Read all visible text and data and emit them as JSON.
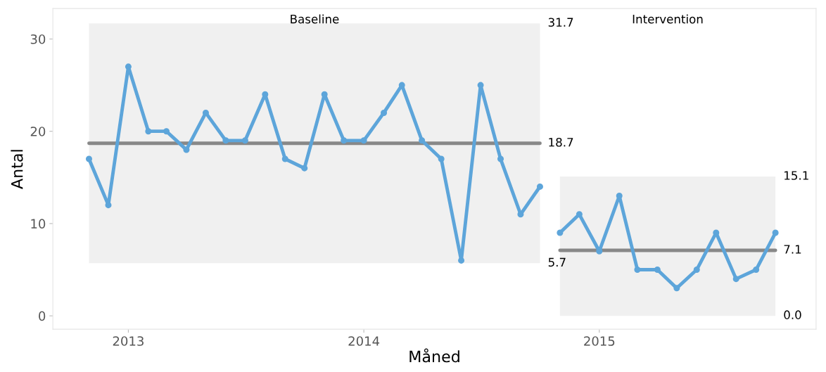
{
  "chart_data": {
    "type": "line",
    "xlabel": "Måned",
    "ylabel": "Antal",
    "marker": "circle",
    "line_style": "solid",
    "grid": false,
    "legend": false,
    "xlim": [
      "2012-09-06",
      "2015-12-03"
    ],
    "xticks": [
      {
        "value": "2013-01",
        "label": "2013"
      },
      {
        "value": "2014-01",
        "label": "2014"
      },
      {
        "value": "2015-01",
        "label": "2015"
      }
    ],
    "ylim": [
      -1.45,
      33.3
    ],
    "yticks": [
      0,
      10,
      20,
      30
    ],
    "series": [
      {
        "color": "#888888",
        "marker": "none",
        "x": [
          "2012-11",
          "2014-10"
        ],
        "values": [
          18.7,
          18.7
        ]
      },
      {
        "color": "#888888",
        "marker": "none",
        "x": [
          "2014-11",
          "2015-10"
        ],
        "values": [
          7.1,
          7.1
        ]
      },
      {
        "color": "#5da5da",
        "x": [
          "2012-11",
          "2012-12",
          "2013-01",
          "2013-02",
          "2013-03",
          "2013-04",
          "2013-05",
          "2013-06",
          "2013-07",
          "2013-08",
          "2013-09",
          "2013-10",
          "2013-11",
          "2013-12",
          "2014-01",
          "2014-02",
          "2014-03",
          "2014-04",
          "2014-05",
          "2014-06",
          "2014-07",
          "2014-08",
          "2014-09",
          "2014-10"
        ],
        "values": [
          17,
          12,
          27,
          20,
          20,
          18,
          22,
          19,
          19,
          24,
          17,
          16,
          24,
          19,
          19,
          22,
          25,
          19,
          17,
          6,
          25,
          17,
          11,
          14
        ],
        "lower": [
          5.7,
          5.7,
          5.7,
          5.7,
          5.7,
          5.7,
          5.7,
          5.7,
          5.7,
          5.7,
          5.7,
          5.7,
          5.7,
          5.7,
          5.7,
          5.7,
          5.7,
          5.7,
          5.7,
          5.7,
          5.7,
          5.7,
          5.7,
          5.7
        ],
        "upper": [
          31.7,
          31.7,
          31.7,
          31.7,
          31.7,
          31.7,
          31.7,
          31.7,
          31.7,
          31.7,
          31.7,
          31.7,
          31.7,
          31.7,
          31.7,
          31.7,
          31.7,
          31.7,
          31.7,
          31.7,
          31.7,
          31.7,
          31.7,
          31.7
        ]
      },
      {
        "color": "#5da5da",
        "x": [
          "2014-11",
          "2014-12",
          "2015-01",
          "2015-02",
          "2015-03",
          "2015-04",
          "2015-05",
          "2015-06",
          "2015-07",
          "2015-08",
          "2015-09",
          "2015-10"
        ],
        "values": [
          9,
          11,
          7,
          13,
          5,
          5,
          3,
          5,
          9,
          4,
          5,
          9
        ],
        "lower": [
          0.0,
          0.0,
          0.0,
          0.0,
          0.0,
          0.0,
          0.0,
          0.0,
          0.0,
          0.0,
          0.0,
          0.0
        ],
        "upper": [
          15.1,
          15.1,
          15.1,
          15.1,
          15.1,
          15.1,
          15.1,
          15.1,
          15.1,
          15.1,
          15.1,
          15.1
        ]
      }
    ],
    "annotations": [
      "Baseline",
      "Intervention",
      {
        "text": "31.7",
        "x": "2014-10",
        "y": 31.7
      },
      {
        "text": "18.7",
        "x": "2014-10",
        "y": 18.7
      },
      {
        "text": "5.7",
        "x": "2014-10",
        "y": 5.7
      },
      {
        "text": "15.1",
        "x": "2015-10",
        "y": 15.1
      },
      {
        "text": "7.1",
        "x": "2015-10",
        "y": 7.1
      },
      {
        "text": "0.0",
        "x": "2015-10",
        "y": 0.0
      }
    ]
  }
}
